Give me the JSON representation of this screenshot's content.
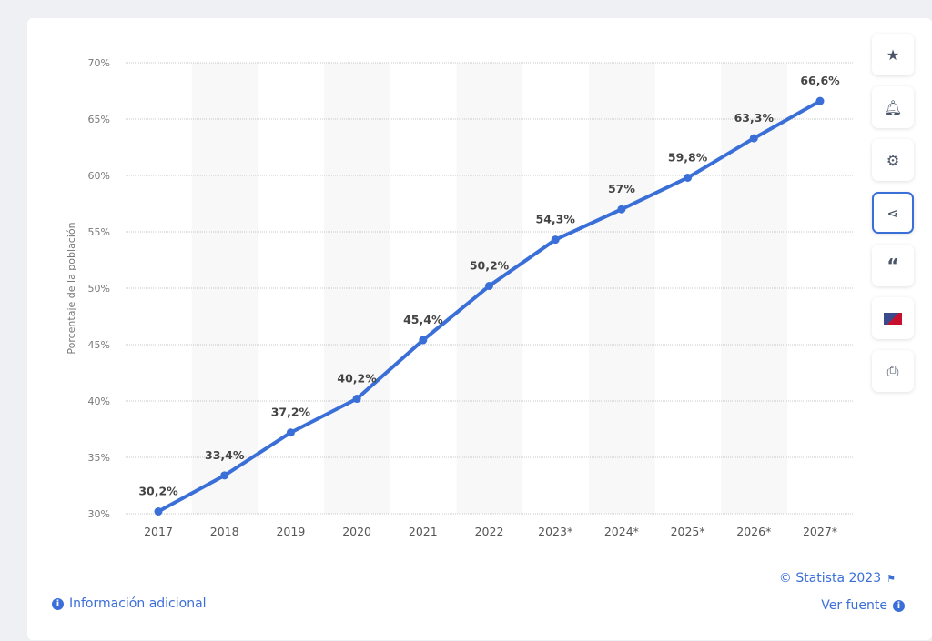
{
  "chart_data": {
    "type": "line",
    "categories": [
      "2017",
      "2018",
      "2019",
      "2020",
      "2021",
      "2022",
      "2023*",
      "2024*",
      "2025*",
      "2026*",
      "2027*"
    ],
    "values": [
      30.2,
      33.4,
      37.2,
      40.2,
      45.4,
      50.2,
      54.3,
      57,
      59.8,
      63.3,
      66.6
    ],
    "data_labels": [
      "30,2%",
      "33,4%",
      "37,2%",
      "40,2%",
      "45,4%",
      "50,2%",
      "54,3%",
      "57%",
      "59,8%",
      "63,3%",
      "66,6%"
    ],
    "ylabel": "Porcentaje de la población",
    "ylim": [
      30,
      70
    ],
    "yticks": [
      "30%",
      "35%",
      "40%",
      "45%",
      "50%",
      "55%",
      "60%",
      "65%",
      "70%"
    ],
    "grid": true,
    "color": "#3b6fd8"
  },
  "sidebar": [
    {
      "icon": "star-icon"
    },
    {
      "icon": "bell-icon"
    },
    {
      "icon": "gear-icon"
    },
    {
      "icon": "share-icon",
      "active": true
    },
    {
      "icon": "quote-icon"
    },
    {
      "icon": "flag-uk-icon"
    },
    {
      "icon": "print-icon"
    }
  ],
  "footer": {
    "copyright": "© Statista 2023",
    "info": "Información adicional",
    "source": "Ver fuente"
  }
}
